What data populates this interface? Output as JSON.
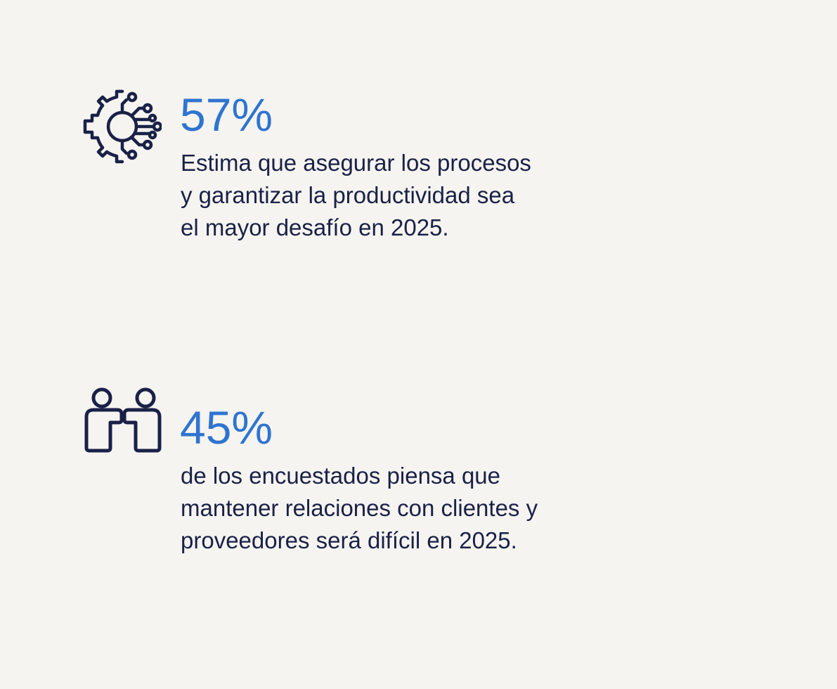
{
  "colors": {
    "background": "#f5f4f0",
    "accent": "#2f74d0",
    "text": "#1a2147",
    "icon": "#1a2147"
  },
  "stats": [
    {
      "icon": "gear-circuit-icon",
      "percent": "57%",
      "description": "Estima que asegurar los procesos\ny garantizar la productividad sea\nel mayor desafío en 2025."
    },
    {
      "icon": "two-people-icon",
      "percent": "45%",
      "description": "de los encuestados piensa que\nmantener relaciones con clientes y\nproveedores será difícil en 2025."
    }
  ]
}
